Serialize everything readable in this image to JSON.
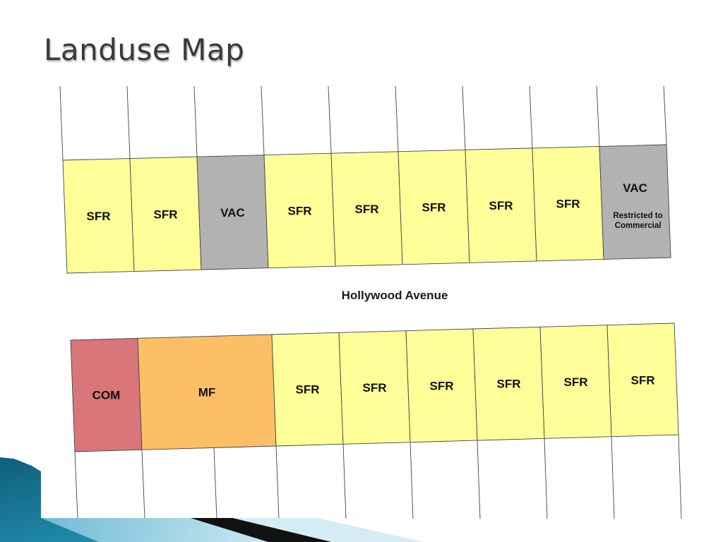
{
  "title": "Landuse Map",
  "street_name": "Hollywood Avenue",
  "colors": {
    "SFR": "#ffff99",
    "VAC": "#b2b2b2",
    "COM": "#d9767a",
    "MF": "#fdbf66"
  },
  "north_block": [
    {
      "label": "SFR",
      "type": "SFR"
    },
    {
      "label": "SFR",
      "type": "SFR"
    },
    {
      "label": "VAC",
      "type": "VAC"
    },
    {
      "label": "SFR",
      "type": "SFR"
    },
    {
      "label": "SFR",
      "type": "SFR"
    },
    {
      "label": "SFR",
      "type": "SFR"
    },
    {
      "label": "SFR",
      "type": "SFR"
    },
    {
      "label": "SFR",
      "type": "SFR"
    },
    {
      "label": "VAC",
      "type": "VAC",
      "note_line1": "Restricted to",
      "note_line2": "Commercial"
    }
  ],
  "south_block": [
    {
      "label": "COM",
      "type": "COM"
    },
    {
      "label": "MF",
      "type": "MF"
    },
    {
      "label": "SFR",
      "type": "SFR"
    },
    {
      "label": "SFR",
      "type": "SFR"
    },
    {
      "label": "SFR",
      "type": "SFR"
    },
    {
      "label": "SFR",
      "type": "SFR"
    },
    {
      "label": "SFR",
      "type": "SFR"
    },
    {
      "label": "SFR",
      "type": "SFR"
    }
  ]
}
